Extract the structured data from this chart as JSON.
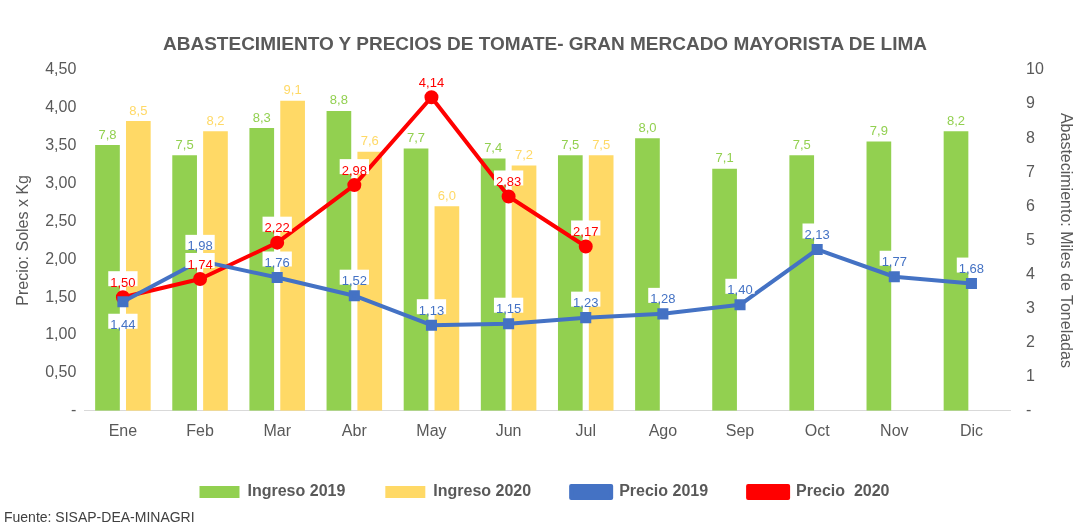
{
  "chart_data": {
    "type": "bar",
    "title": "ABASTECIMIENTO Y PRECIOS DE TOMATE- GRAN MERCADO MAYORISTA DE LIMA",
    "ylabel": "Precio: Soles x Kg",
    "y2label": "Abastecimiento: Miles de Toneladas",
    "categories": [
      "Ene",
      "Feb",
      "Mar",
      "Abr",
      "May",
      "Jun",
      "Jul",
      "Ago",
      "Sep",
      "Oct",
      "Nov",
      "Dic"
    ],
    "series": [
      {
        "name": "Ingreso 2019",
        "type": "bar",
        "axis": "y2",
        "color": "#92d050",
        "values": [
          7.8,
          7.5,
          8.3,
          8.8,
          7.7,
          7.4,
          7.5,
          8.0,
          7.1,
          7.5,
          7.9,
          8.2
        ],
        "value_labels": [
          "7,8",
          "7,5",
          "8,3",
          "8,8",
          "7,7",
          "7,4",
          "7,5",
          "8,0",
          "7,1",
          "7,5",
          "7,9",
          "8,2"
        ]
      },
      {
        "name": "Ingreso 2020",
        "type": "bar",
        "axis": "y2",
        "color": "#ffd966",
        "values": [
          8.5,
          8.2,
          9.1,
          7.6,
          6.0,
          7.2,
          7.5,
          null,
          null,
          null,
          null,
          null
        ],
        "value_labels": [
          "8,5",
          "8,2",
          "9,1",
          "7,6",
          "6,0",
          "7,2",
          "7,5",
          null,
          null,
          null,
          null,
          null
        ]
      },
      {
        "name": "Precio 2019",
        "type": "line",
        "marker": "square",
        "color": "#4472c4",
        "values": [
          1.44,
          1.98,
          1.76,
          1.52,
          1.13,
          1.15,
          1.23,
          1.28,
          1.4,
          2.13,
          1.77,
          1.68
        ],
        "value_labels": [
          "1,44",
          "1,98",
          "1,76",
          "1,52",
          "1,13",
          "1,15",
          "1,23",
          "1,28",
          "1,40",
          "2,13",
          "1,77",
          "1,68"
        ]
      },
      {
        "name": "Precio  2020",
        "type": "line",
        "marker": "circle",
        "color": "#ff0000",
        "values": [
          1.5,
          1.74,
          2.22,
          2.98,
          4.14,
          2.83,
          2.17,
          null,
          null,
          null,
          null,
          null
        ],
        "value_labels": [
          "1,50",
          "1,74",
          "2,22",
          "2,98",
          "4,14",
          "2,83",
          "2,17",
          null,
          null,
          null,
          null,
          null
        ]
      }
    ],
    "ylim": [
      0,
      4.5
    ],
    "yticks": [
      {
        "value": 0,
        "label": "-"
      },
      {
        "value": 0.5,
        "label": "0,50"
      },
      {
        "value": 1,
        "label": "1,00"
      },
      {
        "value": 1.5,
        "label": "1,50"
      },
      {
        "value": 2,
        "label": "2,00"
      },
      {
        "value": 2.5,
        "label": "2,50"
      },
      {
        "value": 3,
        "label": "3,00"
      },
      {
        "value": 3.5,
        "label": "3,50"
      },
      {
        "value": 4,
        "label": "4,00"
      },
      {
        "value": 4.5,
        "label": "4,50"
      }
    ],
    "y2lim": [
      0,
      10
    ],
    "y2ticks": [
      {
        "value": 0,
        "label": "-"
      },
      1,
      2,
      3,
      4,
      5,
      6,
      7,
      8,
      9,
      10
    ],
    "legend": "bottom",
    "annotations": [
      "Fuente: SISAP-DEA-MINAGRI"
    ]
  }
}
